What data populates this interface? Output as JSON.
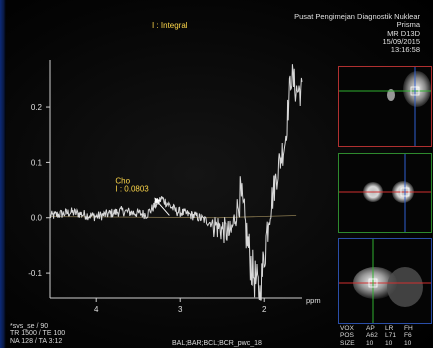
{
  "spectrum_title": "I : Integral",
  "header": {
    "institution": "Pusat Pengimejan Diagnostik Nuklear",
    "system": "Prisma",
    "scanner": "MR D13D",
    "date": "15/09/2015",
    "time": "13:16:58"
  },
  "peak_label": {
    "name": "Cho",
    "integral": "I : 0.0803"
  },
  "axis": {
    "unit": "ppm"
  },
  "chart_data": {
    "type": "line",
    "xlabel": "ppm",
    "ylabel": "",
    "xlim": [
      4.5,
      1.5
    ],
    "ylim": [
      -0.14,
      0.28
    ],
    "x_ticks": [
      "4",
      "3",
      "2"
    ],
    "x_tick_values": [
      4,
      3,
      2
    ],
    "y_ticks": [
      "0.2",
      "0.1",
      "0.0",
      "-0.1"
    ],
    "y_tick_values": [
      0.2,
      0.1,
      0.0,
      -0.1
    ],
    "series": [
      {
        "values": [
          [
            4.55,
            0.003
          ],
          [
            4.3,
            0.01
          ],
          [
            4.0,
            0.002
          ],
          [
            3.7,
            0.012
          ],
          [
            3.4,
            0.006
          ],
          [
            3.22,
            0.035
          ],
          [
            3.05,
            0.012
          ],
          [
            2.8,
            0.002
          ],
          [
            2.62,
            -0.01
          ],
          [
            2.4,
            -0.03
          ],
          [
            2.28,
            0.04
          ],
          [
            2.15,
            -0.09
          ],
          [
            2.05,
            -0.14
          ],
          [
            1.95,
            0.0
          ],
          [
            1.85,
            0.08
          ],
          [
            1.75,
            0.14
          ],
          [
            1.68,
            0.26
          ],
          [
            1.62,
            0.23
          ]
        ]
      }
    ]
  },
  "scan_params": {
    "line1": "*svs_se / 90",
    "line2": "TR 1500 / TE 100",
    "line3": "NA 128 / TA 3:12"
  },
  "coil_label": "BAL;BAR;BCL;BCR_pwc_18",
  "voxel_table": {
    "columns": [
      "AP",
      "LR",
      "FH"
    ],
    "rows": [
      {
        "label": "VOX",
        "values": [
          "",
          "",
          ""
        ]
      },
      {
        "label": "POS",
        "values": [
          "A62",
          "L71",
          "F6"
        ]
      },
      {
        "label": "SIZE",
        "values": [
          "10",
          "10",
          "10"
        ]
      }
    ]
  },
  "colors": {
    "trace": "#d8d8d8",
    "peak_label": "#ffd84a",
    "title": "#ffd84a",
    "crosshair_red": "#d03030",
    "crosshair_green": "#30b030",
    "crosshair_blue": "#3060d0"
  }
}
